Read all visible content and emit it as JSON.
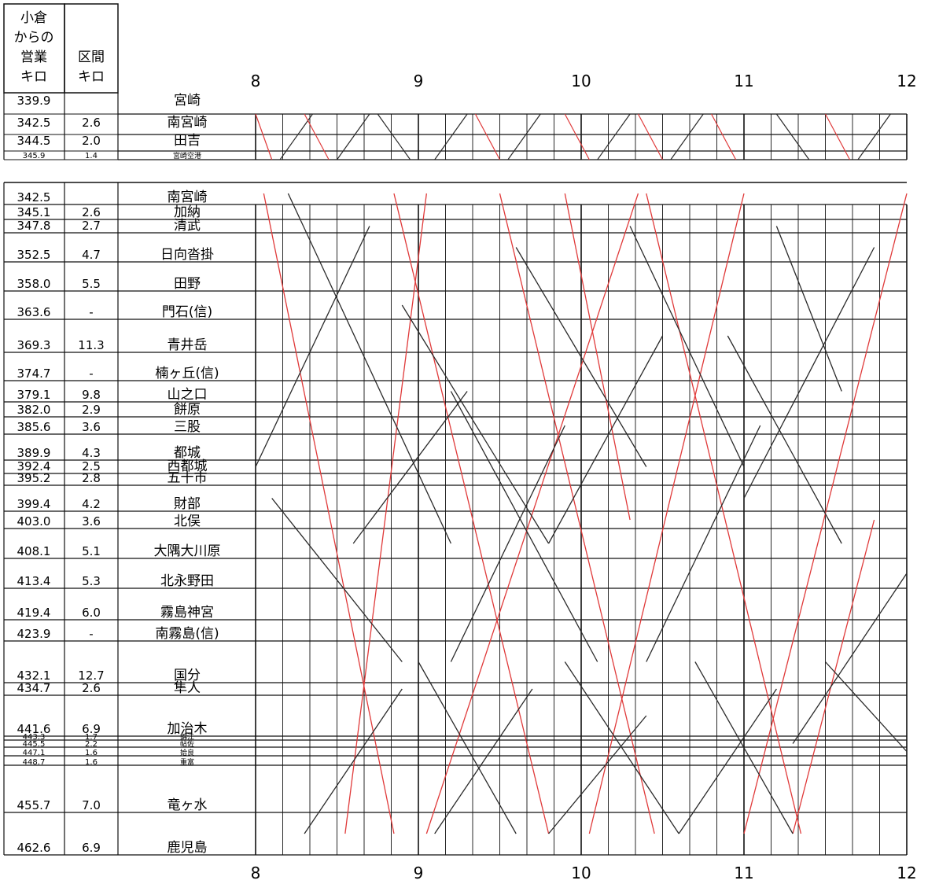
{
  "header": {
    "col1": [
      "小倉",
      "からの",
      "営業",
      "キロ"
    ],
    "col2": [
      "区間",
      "キロ"
    ]
  },
  "hours": [
    "8",
    "9",
    "10",
    "11",
    "12"
  ],
  "branch_stations": [
    {
      "name": "宮崎",
      "km": "339.9",
      "dist": ""
    },
    {
      "name": "南宮崎",
      "km": "342.5",
      "dist": "2.6"
    },
    {
      "name": "田吉",
      "km": "344.5",
      "dist": "2.0"
    },
    {
      "name": "宮崎空港",
      "km": "345.9",
      "dist": "1.4"
    }
  ],
  "main_stations": [
    {
      "name": "南宮崎",
      "km": "342.5",
      "dist": ""
    },
    {
      "name": "加納",
      "km": "345.1",
      "dist": "2.6"
    },
    {
      "name": "清武",
      "km": "347.8",
      "dist": "2.7"
    },
    {
      "name": "日向沓掛",
      "km": "352.5",
      "dist": "4.7"
    },
    {
      "name": "田野",
      "km": "358.0",
      "dist": "5.5"
    },
    {
      "name": "門石(信)",
      "km": "363.6",
      "dist": "-"
    },
    {
      "name": "青井岳",
      "km": "369.3",
      "dist": "11.3"
    },
    {
      "name": "楠ヶ丘(信)",
      "km": "374.7",
      "dist": "-"
    },
    {
      "name": "山之口",
      "km": "379.1",
      "dist": "9.8"
    },
    {
      "name": "餅原",
      "km": "382.0",
      "dist": "2.9"
    },
    {
      "name": "三股",
      "km": "385.6",
      "dist": "3.6"
    },
    {
      "name": "都城",
      "km": "389.9",
      "dist": "4.3"
    },
    {
      "name": "西都城",
      "km": "392.4",
      "dist": "2.5"
    },
    {
      "name": "五十市",
      "km": "395.2",
      "dist": "2.8"
    },
    {
      "name": "財部",
      "km": "399.4",
      "dist": "4.2"
    },
    {
      "name": "北俣",
      "km": "403.0",
      "dist": "3.6"
    },
    {
      "name": "大隅大川原",
      "km": "408.1",
      "dist": "5.1"
    },
    {
      "name": "北永野田",
      "km": "413.4",
      "dist": "5.3"
    },
    {
      "name": "霧島神宮",
      "km": "419.4",
      "dist": "6.0"
    },
    {
      "name": "南霧島(信)",
      "km": "423.9",
      "dist": "-"
    },
    {
      "name": "国分",
      "km": "432.1",
      "dist": "12.7"
    },
    {
      "name": "隼人",
      "km": "434.7",
      "dist": "2.6"
    },
    {
      "name": "加治木",
      "km": "441.6",
      "dist": "6.9"
    },
    {
      "name": "錦江",
      "km": "443.3",
      "dist": "1.7"
    },
    {
      "name": "帖佐",
      "km": "445.5",
      "dist": "2.2"
    },
    {
      "name": "姶良",
      "km": "447.1",
      "dist": "1.6"
    },
    {
      "name": "重富",
      "km": "448.7",
      "dist": "1.6"
    },
    {
      "name": "竜ヶ水",
      "km": "455.7",
      "dist": "7.0"
    },
    {
      "name": "鹿児島",
      "km": "462.6",
      "dist": "6.9"
    }
  ],
  "colors": {
    "grid": "#1a1a1a",
    "train_black": "#2a2a2a",
    "train_red": "#e03a3a"
  }
}
